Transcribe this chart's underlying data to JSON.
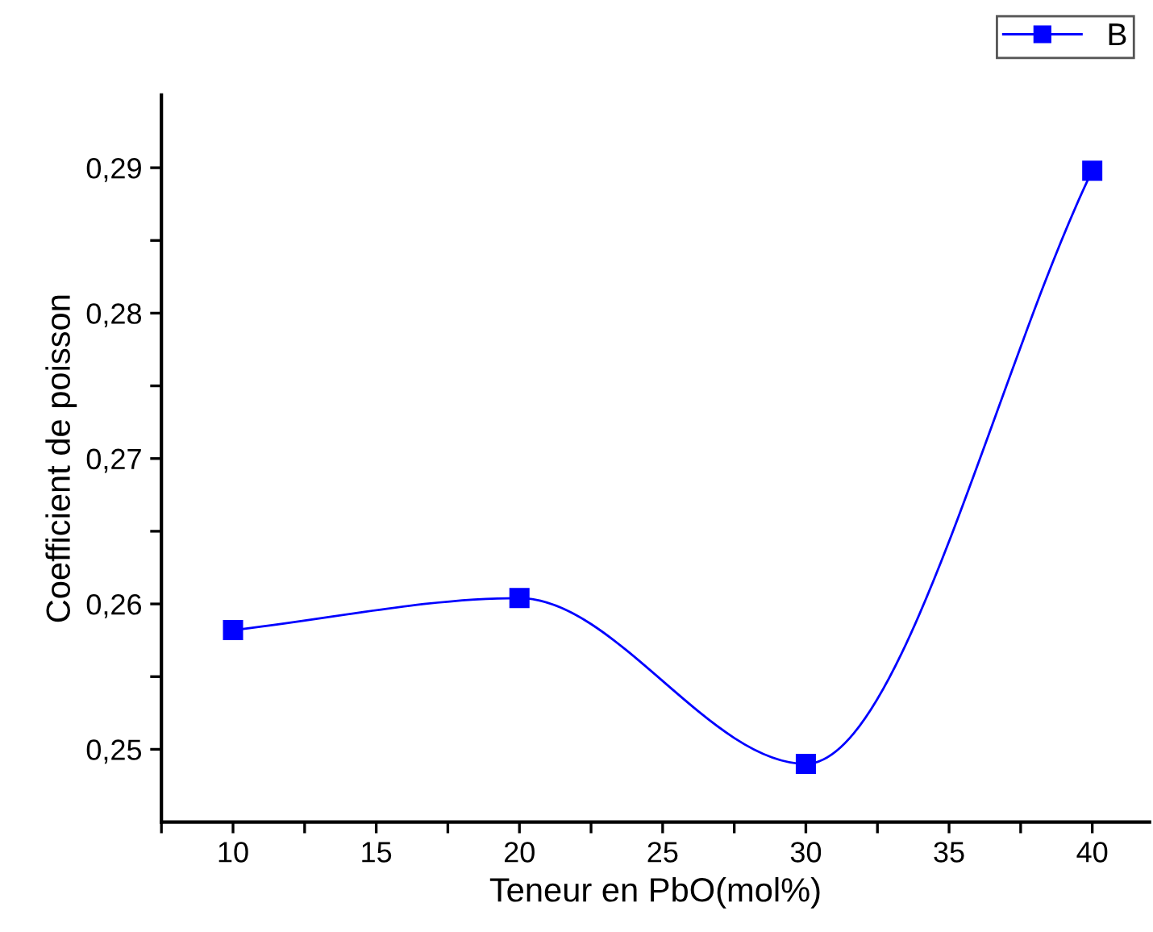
{
  "chart_data": {
    "type": "line",
    "xlabel": "Teneur en PbO(mol%)",
    "ylabel": "Coefficient de poisson",
    "x": [
      10,
      20,
      30,
      40
    ],
    "series": [
      {
        "name": "B",
        "color": "#0000ff",
        "values": [
          0.2582,
          0.2604,
          0.249,
          0.2898
        ]
      }
    ],
    "xlim": [
      7.5,
      42
    ],
    "ylim": [
      0.245,
      0.295
    ],
    "xticks": [
      {
        "value": 7.5,
        "label": null
      },
      10,
      {
        "value": 12.5,
        "label": null
      },
      15,
      {
        "value": 17.5,
        "label": null
      },
      20,
      {
        "value": 22.5,
        "label": null
      },
      25,
      {
        "value": 27.5,
        "label": null
      },
      30,
      {
        "value": 32.5,
        "label": null
      },
      35,
      {
        "value": 37.5,
        "label": null
      },
      40
    ],
    "yticks": [
      {
        "value": 0.25,
        "label": "0,25"
      },
      {
        "value": 0.255,
        "label": null
      },
      {
        "value": 0.26,
        "label": "0,26"
      },
      {
        "value": 0.265,
        "label": null
      },
      {
        "value": 0.27,
        "label": "0,27"
      },
      {
        "value": 0.275,
        "label": null
      },
      {
        "value": 0.28,
        "label": "0,28"
      },
      {
        "value": 0.285,
        "label": null
      },
      {
        "value": 0.29,
        "label": "0,29"
      }
    ],
    "marker": "square",
    "line_style": "solid",
    "legend": "top right",
    "grid": false
  }
}
